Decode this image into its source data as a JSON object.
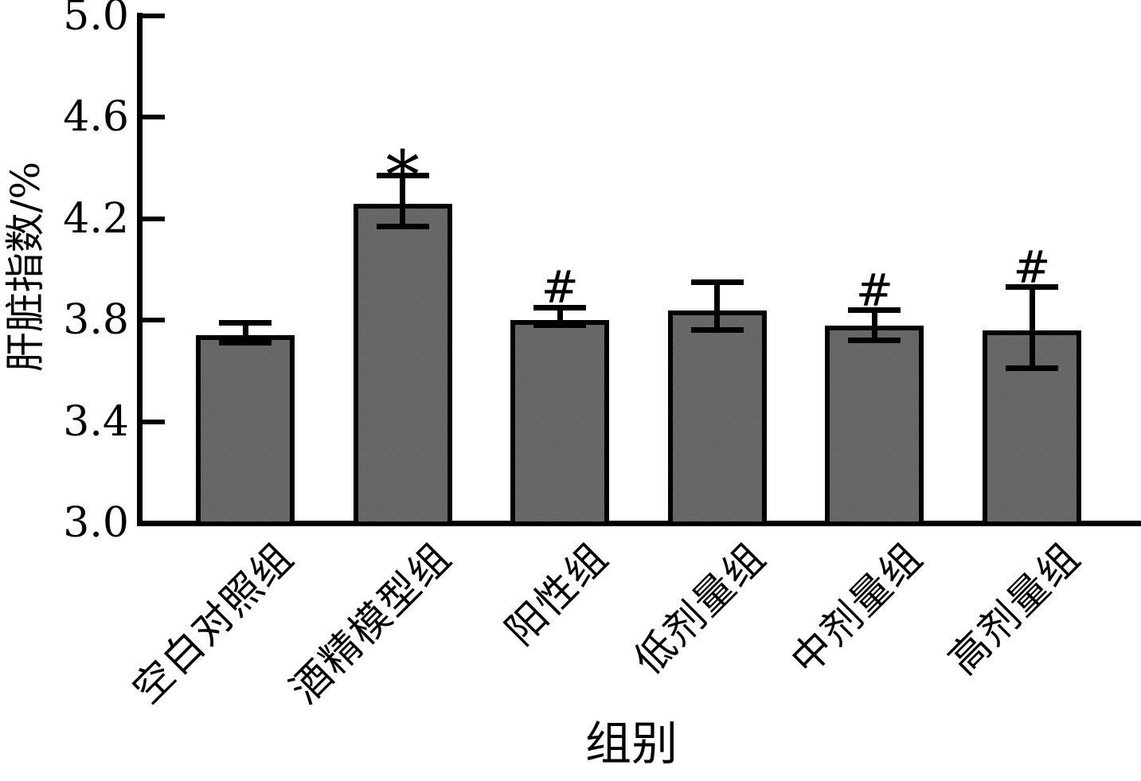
{
  "chart_data": {
    "type": "bar",
    "title": "",
    "xlabel": "组别",
    "ylabel": "肝脏指数/%",
    "ylim": [
      3.0,
      5.0
    ],
    "ytick_labels": [
      "3.0",
      "3.4",
      "3.8",
      "4.2",
      "4.6",
      "5.0"
    ],
    "categories": [
      "空白对照组",
      "酒精模型组",
      "阳性组",
      "低剂量组",
      "中剂量组",
      "高剂量组"
    ],
    "series": [
      {
        "name": "肝脏指数/%",
        "values": [
          3.74,
          4.26,
          3.8,
          3.84,
          3.78,
          3.76
        ],
        "error_upper_cap": [
          3.79,
          4.37,
          3.85,
          3.95,
          3.84,
          3.93
        ],
        "error_lower_cap": [
          3.71,
          4.17,
          3.78,
          3.76,
          3.72,
          3.61
        ],
        "annotations": [
          "",
          "*",
          "#",
          "",
          "#",
          "#"
        ]
      }
    ],
    "grid": false,
    "legend_position": "none",
    "bar_color": "#666666",
    "axis_color": "#000000",
    "background_color": "#ffffff"
  }
}
